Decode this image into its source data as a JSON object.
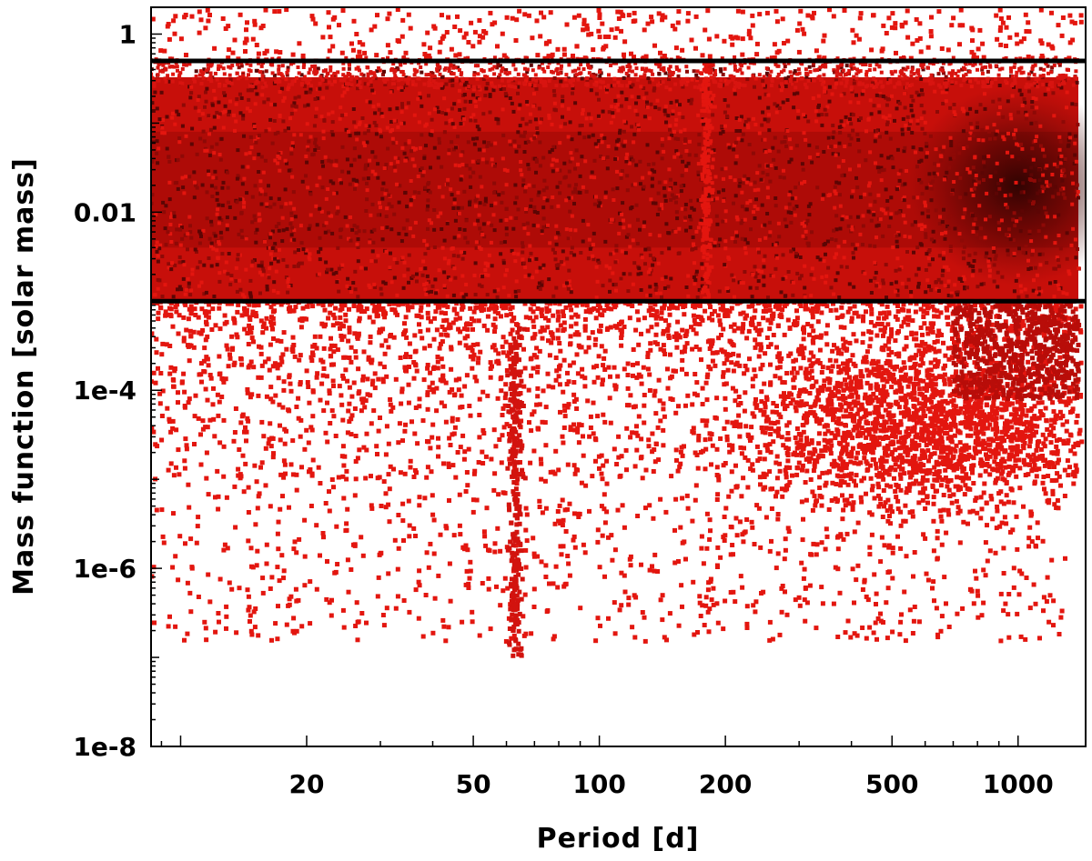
{
  "chart_data": {
    "type": "scatter",
    "xlabel": "Period [d]",
    "ylabel": "Mass function [solar mass]",
    "x_scale": "log",
    "y_scale": "log",
    "xlim": [
      8.5,
      1450
    ],
    "ylim": [
      1e-08,
      2
    ],
    "x_ticks": [
      {
        "value": 20,
        "label": "20"
      },
      {
        "value": 50,
        "label": "50"
      },
      {
        "value": 100,
        "label": "100"
      },
      {
        "value": 200,
        "label": "200"
      },
      {
        "value": 500,
        "label": "500"
      },
      {
        "value": 1000,
        "label": "1000"
      }
    ],
    "y_ticks": [
      {
        "value": 1,
        "label": "1"
      },
      {
        "value": 0.01,
        "label": "0.01"
      },
      {
        "value": 0.0001,
        "label": "1e-4"
      },
      {
        "value": 1e-06,
        "label": "1e-6"
      },
      {
        "value": 1e-08,
        "label": "1e-8"
      }
    ],
    "reference_lines": [
      {
        "orientation": "horizontal",
        "y": 0.5,
        "color": "#000000"
      },
      {
        "orientation": "horizontal",
        "y": 0.001,
        "color": "#000000"
      }
    ],
    "density_regions": [
      {
        "x_range": [
          8.5,
          1450
        ],
        "y_range": [
          0.001,
          0.5
        ],
        "density": "very high"
      },
      {
        "x_range": [
          700,
          1400
        ],
        "y_range": [
          0.005,
          0.05
        ],
        "density": "peak"
      },
      {
        "x_range": [
          8.5,
          1450
        ],
        "y_range": [
          1e-05,
          0.001
        ],
        "density": "medium"
      },
      {
        "x_range": [
          300,
          1300
        ],
        "y_range": [
          3e-06,
          0.0001
        ],
        "density": "medium"
      },
      {
        "x_range": [
          8.5,
          1450
        ],
        "y_range": [
          1e-07,
          1e-05
        ],
        "density": "sparse"
      },
      {
        "x_range": [
          8.5,
          1450
        ],
        "y_range": [
          0.5,
          2
        ],
        "density": "sparse"
      }
    ],
    "features": [
      {
        "description": "vertical streak",
        "x": 63,
        "y_range": [
          1e-07,
          0.0005
        ]
      },
      {
        "description": "vertical stripe",
        "x": 180,
        "y_range": [
          0.001,
          0.5
        ]
      }
    ],
    "colors": {
      "points": "#e3160f",
      "dense": "#7a0806",
      "peak": "#1a0201",
      "lines": "#000000"
    },
    "grid": false,
    "legend": "none"
  }
}
